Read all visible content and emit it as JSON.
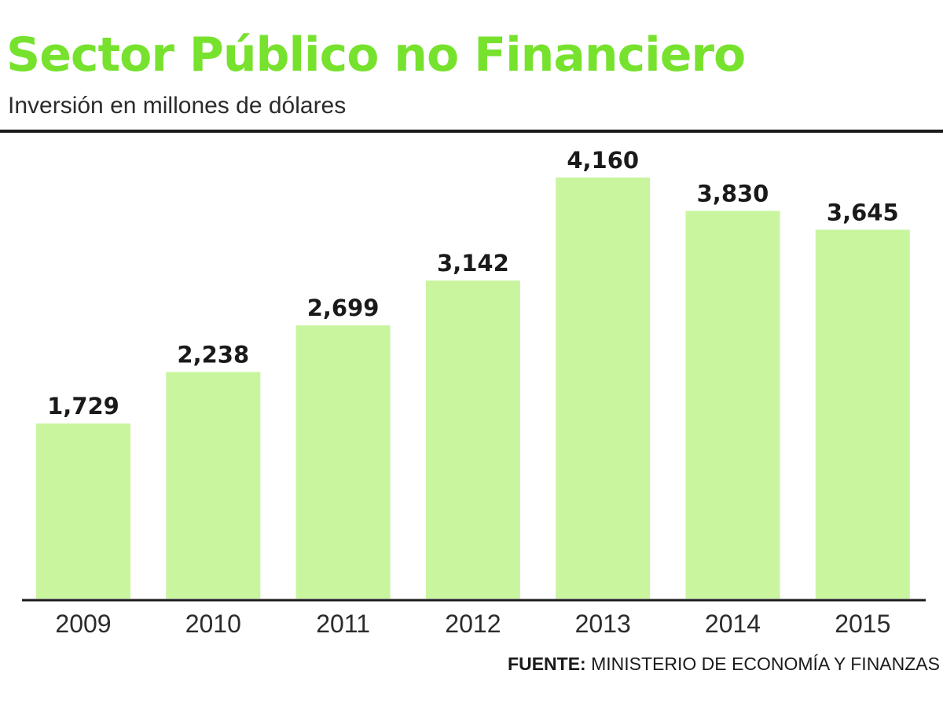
{
  "title": "Sector Público no Financiero",
  "subtitle": "Inversión en millones de dólares",
  "source": {
    "label": "FUENTE:",
    "text": "MINISTERIO DE ECONOMÍA Y FINANZAS"
  },
  "colors": {
    "title": "#77e22e",
    "bar": "#c9f59f",
    "text": "#1a1a1a"
  },
  "chart_data": {
    "type": "bar",
    "title": "Sector Público no Financiero",
    "subtitle": "Inversión en millones de dólares",
    "xlabel": "",
    "ylabel": "",
    "categories": [
      "2009",
      "2010",
      "2011",
      "2012",
      "2013",
      "2014",
      "2015"
    ],
    "values": [
      1729,
      2238,
      2699,
      3142,
      4160,
      3830,
      3645
    ],
    "value_labels": [
      "1,729",
      "2,238",
      "2,699",
      "3,142",
      "4,160",
      "3,830",
      "3,645"
    ],
    "ylim": [
      0,
      4160
    ],
    "grid": false,
    "legend": "none"
  }
}
